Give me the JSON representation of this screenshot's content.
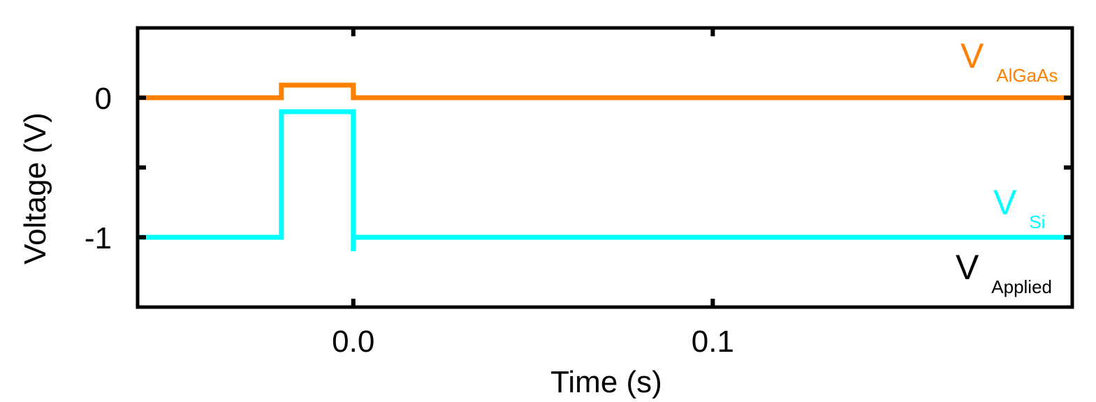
{
  "chart_data": {
    "type": "line",
    "title": "",
    "xlabel": "Time (s)",
    "ylabel": "Voltage (V)",
    "xlim": [
      -0.06,
      0.2
    ],
    "ylim": [
      -1.5,
      0.5
    ],
    "grid": false,
    "legend": "inline labels at right",
    "x_ticks": [
      {
        "value": 0.0,
        "label": "0.0"
      },
      {
        "value": 0.1,
        "label": "0.1"
      }
    ],
    "y_ticks": [
      {
        "value": 0,
        "label": "0"
      },
      {
        "value": -1,
        "label": "-1"
      }
    ],
    "series": [
      {
        "name": "V_AlGaAs",
        "color": "#ff8000",
        "points": [
          [
            -0.06,
            0.0
          ],
          [
            -0.02,
            0.0
          ],
          [
            -0.02,
            0.09
          ],
          [
            0.0,
            0.09
          ],
          [
            0.0,
            0.0
          ],
          [
            0.2,
            0.0
          ]
        ]
      },
      {
        "name": "V_Si",
        "color": "#00ffff",
        "points": [
          [
            -0.06,
            -1.0
          ],
          [
            -0.02,
            -1.0
          ],
          [
            -0.02,
            -0.1
          ],
          [
            0.0,
            -0.1
          ],
          [
            0.0,
            -1.1
          ],
          [
            0.0,
            -1.0
          ],
          [
            0.2,
            -1.0
          ]
        ]
      }
    ],
    "labels": [
      {
        "main": "V",
        "sub": "AlGaAs",
        "color": "#ff8000"
      },
      {
        "main": "V",
        "sub": "Si",
        "color": "#00ffff"
      },
      {
        "main": "V",
        "sub": "Applied",
        "color": "#000000"
      }
    ]
  }
}
